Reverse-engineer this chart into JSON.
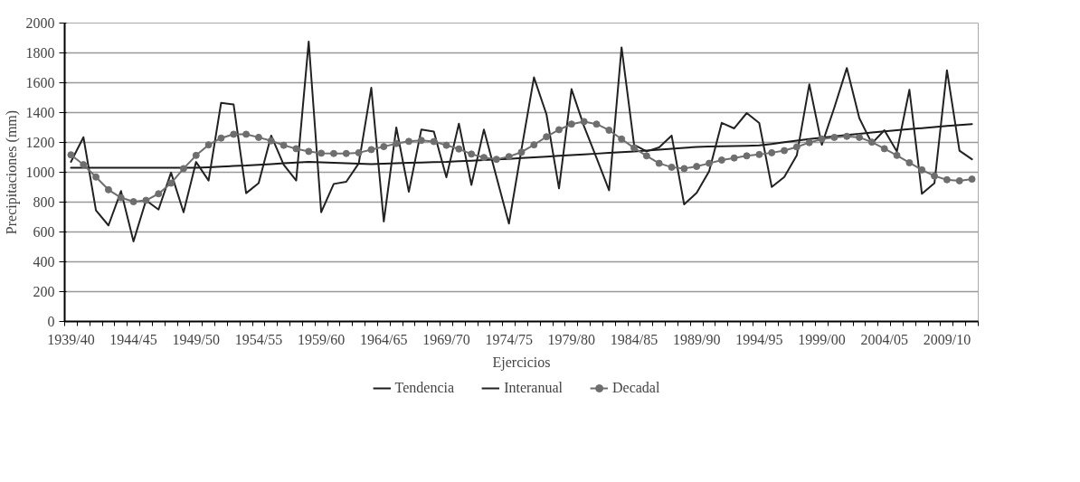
{
  "chart_data": {
    "type": "line",
    "xlabel": "Ejercicios",
    "ylabel": "Precipitaciones (mm)",
    "categories": [
      "1939/40",
      null,
      null,
      null,
      null,
      "1944/45",
      null,
      null,
      null,
      null,
      "1949/50",
      null,
      null,
      null,
      null,
      "1954/55",
      null,
      null,
      null,
      null,
      "1959/60",
      null,
      null,
      null,
      null,
      "1964/65",
      null,
      null,
      null,
      null,
      "1969/70",
      null,
      null,
      null,
      null,
      "1974/75",
      null,
      null,
      null,
      null,
      "1979/80",
      null,
      null,
      null,
      null,
      "1984/85",
      null,
      null,
      null,
      null,
      "1989/90",
      null,
      null,
      null,
      null,
      "1994/95",
      null,
      null,
      null,
      null,
      "1999/00",
      null,
      null,
      null,
      null,
      "2004/05",
      null,
      null,
      null,
      null,
      "2009/10",
      null,
      null
    ],
    "ylim": [
      0,
      2000
    ],
    "yticks": [
      0,
      200,
      400,
      600,
      800,
      1000,
      1200,
      1400,
      1600,
      1800,
      2000
    ],
    "grid": "y",
    "legend": "bottom",
    "line_style": "solid",
    "series": [
      {
        "name": "Tendencia",
        "color": "#1a1a1a",
        "marker": "none",
        "values": [
          1030,
          1030,
          1030,
          1030,
          1030,
          1030,
          1030,
          1030,
          1030,
          1030,
          1030,
          1034,
          1038,
          1042,
          1045,
          1050,
          1055,
          1060,
          1065,
          1070,
          1067,
          1064,
          1061,
          1058,
          1055,
          1058,
          1060,
          1063,
          1065,
          1068,
          1070,
          1074,
          1078,
          1082,
          1086,
          1090,
          1095,
          1100,
          1105,
          1110,
          1115,
          1120,
          1125,
          1130,
          1135,
          1140,
          1146,
          1152,
          1158,
          1164,
          1170,
          1172,
          1174,
          1176,
          1178,
          1180,
          1190,
          1201,
          1212,
          1223,
          1232,
          1241,
          1250,
          1258,
          1266,
          1274,
          1282,
          1289,
          1296,
          1303,
          1310,
          1316,
          1323
        ]
      },
      {
        "name": "Interanual",
        "color": "#222222",
        "marker": "none",
        "values": [
          1070,
          1235,
          745,
          644,
          874,
          537,
          812,
          750,
          998,
          732,
          1069,
          945,
          1465,
          1454,
          860,
          927,
          1246,
          1051,
          945,
          1876,
          732,
          922,
          936,
          1060,
          1566,
          670,
          1300,
          869,
          1287,
          1273,
          966,
          1326,
          915,
          1287,
          970,
          656,
          1152,
          1636,
          1388,
          892,
          1557,
          1308,
          1096,
          879,
          1837,
          1184,
          1140,
          1167,
          1246,
          785,
          862,
          1007,
          1331,
          1294,
          1397,
          1330,
          901,
          968,
          1113,
          1589,
          1184,
          1433,
          1699,
          1362,
          1193,
          1282,
          1140,
          1553,
          856,
          927,
          1684,
          1145,
          1087
        ]
      },
      {
        "name": "Decadal",
        "color": "#6e6e6e",
        "marker": "circle",
        "values": [
          1117,
          1051,
          968,
          883,
          830,
          803,
          812,
          856,
          927,
          1025,
          1113,
          1184,
          1229,
          1255,
          1255,
          1234,
          1211,
          1181,
          1158,
          1140,
          1128,
          1126,
          1126,
          1131,
          1152,
          1172,
          1193,
          1207,
          1214,
          1206,
          1181,
          1156,
          1122,
          1099,
          1087,
          1105,
          1135,
          1184,
          1238,
          1285,
          1323,
          1340,
          1323,
          1282,
          1223,
          1163,
          1110,
          1060,
          1034,
          1025,
          1039,
          1060,
          1082,
          1096,
          1110,
          1119,
          1131,
          1145,
          1170,
          1199,
          1223,
          1234,
          1241,
          1234,
          1202,
          1158,
          1113,
          1064,
          1016,
          975,
          950,
          943,
          954
        ]
      }
    ]
  }
}
